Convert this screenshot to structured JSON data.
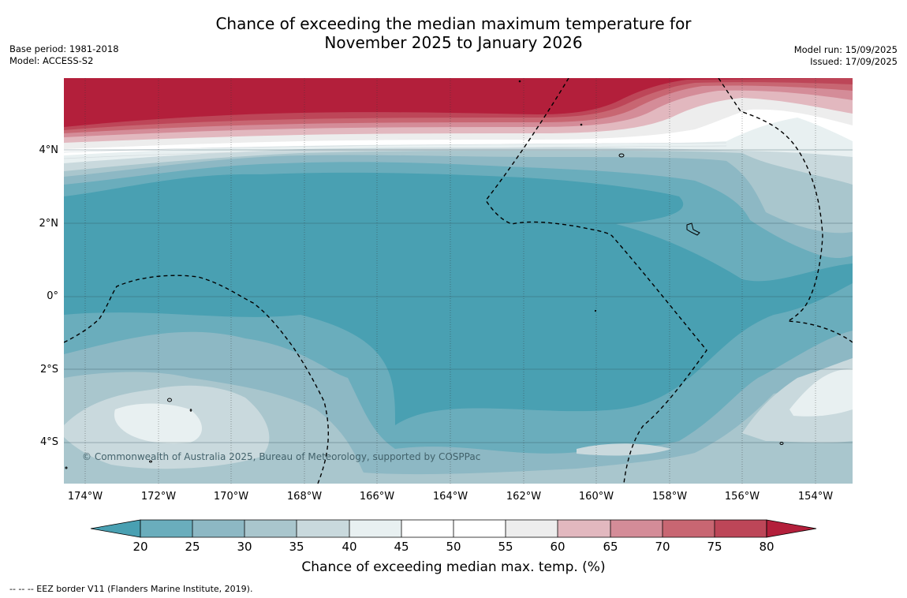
{
  "title_line1": "Chance of exceeding the median maximum temperature for",
  "title_line2": "November 2025 to January 2026",
  "base_period": "Base period: 1981-2018",
  "model": "Model: ACCESS-S2",
  "model_run": "Model run: 15/09/2025",
  "issued": "Issued: 17/09/2025",
  "copyright": "© Commonwealth of Australia 2025, Bureau of Meteorology, supported by COSPPac",
  "eez_note": "--  --  -- EEZ border V11 (Flanders Marine Institute, 2019).",
  "lon_labels": [
    "174°W",
    "172°W",
    "170°W",
    "168°W",
    "166°W",
    "164°W",
    "162°W",
    "160°W",
    "158°W",
    "156°W",
    "154°W"
  ],
  "lat_labels": [
    "4°N",
    "2°N",
    "0°",
    "2°S",
    "4°S"
  ],
  "colorbar": {
    "label": "Chance of exceeding median max. temp. (%)",
    "ticks": [
      "20",
      "25",
      "30",
      "35",
      "40",
      "45",
      "50",
      "55",
      "60",
      "65",
      "70",
      "75",
      "80"
    ],
    "colors": {
      "below": "#49a0b2",
      "c20_25": "#6aadbc",
      "c25_30": "#8db8c4",
      "c30_35": "#a9c6cd",
      "c35_40": "#c9d9dd",
      "c40_45": "#e8f0f1",
      "c45_50": "#ffffff",
      "c50_55": "#ffffff",
      "c55_60": "#ededed",
      "c60_65": "#e2b8bf",
      "c65_70": "#d48c98",
      "c70_75": "#c86672",
      "c75_80": "#bd4658",
      "above": "#b31f3b"
    }
  }
}
